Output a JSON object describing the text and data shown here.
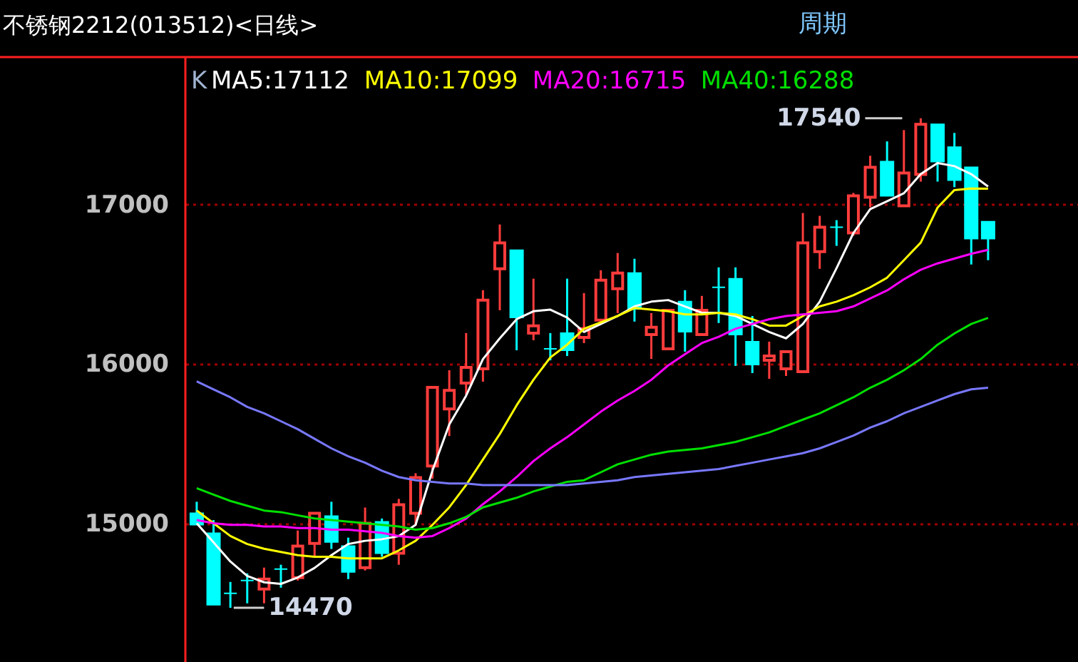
{
  "chart_data": {
    "type": "candlestick",
    "title": "不锈钢2212(013512)<日线>",
    "categories": [
      null,
      null,
      null,
      null,
      null,
      null,
      null,
      null,
      null,
      null,
      null,
      null,
      null,
      null,
      null,
      null,
      null,
      null,
      null,
      null,
      null,
      null,
      null,
      null,
      null,
      null,
      null,
      null,
      null,
      null,
      null,
      null,
      null,
      null,
      null,
      null,
      null,
      null,
      null,
      null,
      null,
      null,
      null,
      null,
      null,
      null,
      null,
      null
    ],
    "ohlc": [
      [
        15063,
        15135,
        14991,
        14991
      ],
      [
        14937,
        15020,
        14489,
        14489
      ],
      [
        14561,
        14632,
        14470,
        14561
      ],
      [
        14641,
        14686,
        14498,
        14641
      ],
      [
        14587,
        14722,
        14498,
        14650
      ],
      [
        14713,
        14740,
        14596,
        14713
      ],
      [
        14659,
        14955,
        14641,
        14857
      ],
      [
        14874,
        15063,
        14794,
        15063
      ],
      [
        15045,
        15135,
        14839,
        14883
      ],
      [
        14857,
        14910,
        14650,
        14695
      ],
      [
        14722,
        15099,
        14704,
        15000
      ],
      [
        15009,
        15030,
        14790,
        14812
      ],
      [
        14812,
        15153,
        14740,
        15117
      ],
      [
        15063,
        15314,
        15000,
        15287
      ],
      [
        15359,
        15852,
        15280,
        15852
      ],
      [
        15717,
        15960,
        15547,
        15834
      ],
      [
        15879,
        16193,
        15807,
        15978
      ],
      [
        15969,
        16462,
        15888,
        16399
      ],
      [
        16596,
        16874,
        16336,
        16758
      ],
      [
        16713,
        16713,
        16085,
        16291
      ],
      [
        16193,
        16534,
        16148,
        16238
      ],
      [
        16094,
        16193,
        16022,
        16094
      ],
      [
        16193,
        16534,
        16049,
        16085
      ],
      [
        16166,
        16444,
        16130,
        16220
      ],
      [
        16274,
        16587,
        16274,
        16525
      ],
      [
        16471,
        16695,
        16318,
        16570
      ],
      [
        16570,
        16659,
        16265,
        16345
      ],
      [
        16184,
        16318,
        16031,
        16229
      ],
      [
        16094,
        16336,
        16094,
        16336
      ],
      [
        16390,
        16462,
        16076,
        16202
      ],
      [
        16184,
        16426,
        16184,
        16336
      ],
      [
        16480,
        16605,
        16256,
        16480
      ],
      [
        16534,
        16605,
        15987,
        16184
      ],
      [
        16139,
        16300,
        15942,
        15996
      ],
      [
        16022,
        16139,
        15906,
        16049
      ],
      [
        15969,
        16076,
        15924,
        16076
      ],
      [
        15951,
        16946,
        15951,
        16758
      ],
      [
        16704,
        16928,
        16596,
        16857
      ],
      [
        16857,
        16901,
        16740,
        16857
      ],
      [
        16821,
        17072,
        16803,
        17054
      ],
      [
        17045,
        17305,
        16982,
        17233
      ],
      [
        17269,
        17395,
        17054,
        17054
      ],
      [
        16991,
        17466,
        16991,
        17197
      ],
      [
        17188,
        17540,
        17143,
        17502
      ],
      [
        17502,
        17502,
        17143,
        17269
      ],
      [
        17359,
        17448,
        17108,
        17152
      ],
      [
        17233,
        17233,
        16623,
        16785
      ],
      [
        16892,
        16892,
        16650,
        16785
      ]
    ],
    "series": [
      {
        "name": "MA5:17112",
        "type": "line",
        "color": "#ffffff",
        "values": [
          15000,
          14880,
          14760,
          14670,
          14630,
          14620,
          14660,
          14720,
          14800,
          14870,
          14890,
          14900,
          14920,
          14990,
          15330,
          15620,
          15800,
          16030,
          16160,
          16280,
          16330,
          16340,
          16290,
          16200,
          16250,
          16300,
          16360,
          16390,
          16400,
          16360,
          16320,
          16320,
          16300,
          16250,
          16200,
          16160,
          16250,
          16390,
          16600,
          16820,
          16970,
          17020,
          17070,
          17190,
          17260,
          17240,
          17190,
          17112
        ]
      },
      {
        "name": "MA10:17099",
        "type": "line",
        "color": "#ffff00",
        "values": [
          15080,
          15000,
          14920,
          14870,
          14840,
          14820,
          14800,
          14790,
          14790,
          14780,
          14780,
          14780,
          14830,
          14890,
          14990,
          15100,
          15240,
          15400,
          15560,
          15740,
          15900,
          16040,
          16120,
          16220,
          16260,
          16300,
          16350,
          16340,
          16330,
          16310,
          16310,
          16320,
          16310,
          16280,
          16240,
          16240,
          16300,
          16360,
          16390,
          16430,
          16480,
          16540,
          16650,
          16760,
          16980,
          17090,
          17100,
          17099
        ]
      },
      {
        "name": "MA20:16715",
        "type": "line",
        "color": "#ff00ff",
        "values": [
          15020,
          15000,
          14990,
          14990,
          14980,
          14980,
          14970,
          14970,
          14960,
          14960,
          14950,
          14940,
          14920,
          14910,
          14920,
          14970,
          15030,
          15120,
          15200,
          15290,
          15390,
          15470,
          15540,
          15620,
          15700,
          15770,
          15830,
          15900,
          15990,
          16060,
          16130,
          16170,
          16220,
          16250,
          16280,
          16300,
          16310,
          16320,
          16330,
          16360,
          16410,
          16460,
          16530,
          16590,
          16630,
          16660,
          16690,
          16715
        ]
      },
      {
        "name": "MA40:16288",
        "type": "line",
        "color": "#00e000",
        "values": [
          15220,
          15180,
          15140,
          15110,
          15080,
          15070,
          15050,
          15030,
          15020,
          15010,
          15000,
          14990,
          14980,
          14960,
          14970,
          15000,
          15040,
          15100,
          15130,
          15160,
          15200,
          15230,
          15260,
          15270,
          15320,
          15370,
          15400,
          15430,
          15450,
          15460,
          15470,
          15490,
          15510,
          15540,
          15570,
          15610,
          15650,
          15690,
          15740,
          15790,
          15850,
          15900,
          15960,
          16030,
          16120,
          16190,
          16250,
          16288
        ]
      },
      {
        "type": "line",
        "color": "#7878ff",
        "values": [
          15890,
          15840,
          15790,
          15730,
          15690,
          15640,
          15590,
          15530,
          15470,
          15420,
          15380,
          15330,
          15290,
          15270,
          15260,
          15250,
          15250,
          15240,
          15240,
          15240,
          15240,
          15240,
          15240,
          15250,
          15260,
          15270,
          15290,
          15300,
          15310,
          15320,
          15330,
          15340,
          15360,
          15380,
          15400,
          15420,
          15440,
          15470,
          15510,
          15550,
          15600,
          15640,
          15690,
          15730,
          15770,
          15810,
          15840,
          15850
        ]
      }
    ],
    "ylim": [
      14130,
      17915
    ],
    "yticks": [
      15000,
      16000,
      17000
    ],
    "grid": "y",
    "legend": "top",
    "marker": "none",
    "line_style": "solid",
    "annotations": [
      "K",
      "周期",
      "17540",
      "14470"
    ]
  }
}
